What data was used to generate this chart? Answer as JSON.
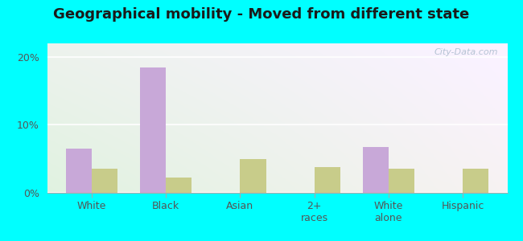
{
  "title": "Geographical mobility - Moved from different state",
  "categories": [
    "White",
    "Black",
    "Asian",
    "2+\nraces",
    "White\nalone",
    "Hispanic"
  ],
  "newport_values": [
    6.5,
    18.5,
    0,
    0,
    6.8,
    0
  ],
  "nc_values": [
    3.5,
    2.2,
    5.0,
    3.8,
    3.5,
    3.5
  ],
  "newport_color": "#c8a8d8",
  "nc_color": "#c8cc8a",
  "ylim": [
    0,
    22
  ],
  "yticks": [
    0,
    10,
    20
  ],
  "ytick_labels": [
    "0%",
    "10%",
    "20%"
  ],
  "outer_background": "#00ffff",
  "bar_width": 0.35,
  "title_fontsize": 13,
  "watermark": "City-Data.com",
  "grad_bottom_left": "#b8e8b8",
  "grad_top_right": "#e8f8f8"
}
